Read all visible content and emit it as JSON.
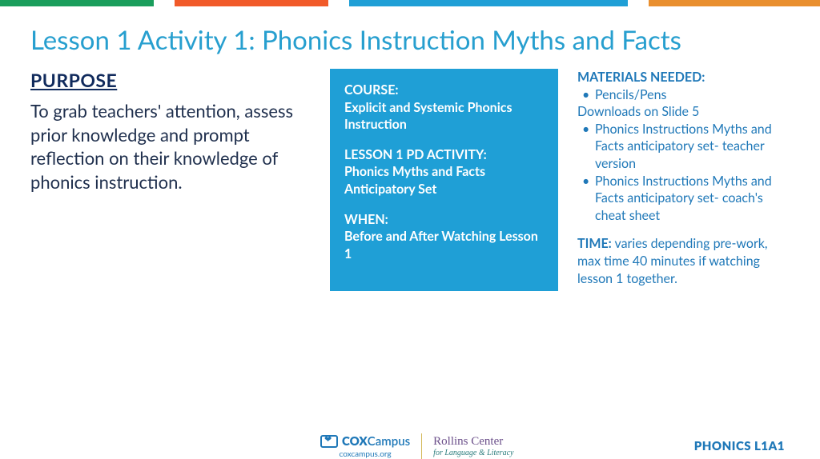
{
  "colors": {
    "top_bar": [
      "#1a9e5c",
      "#ffffff",
      "#f15a29",
      "#ffffff",
      "#1f9fd6",
      "#ffffff",
      "#e98f2f"
    ],
    "top_bar_widths": [
      192,
      26,
      192,
      26,
      348,
      26,
      214
    ],
    "title": "#279fcf",
    "purpose_heading": "#102a5c",
    "purpose_text": "#1f2f4d",
    "bluebox_bg": "#1f9fd6",
    "bluebox_text": "#ffffff",
    "materials_text": "#1f78b8",
    "footer_cox": "#1f78b8",
    "footer_divider": "#d4b95a",
    "footer_rollins_main": "#6b4f8a",
    "footer_rollins_sub": "#2a7c7c",
    "footer_code": "#1f78b8"
  },
  "title": "Lesson 1 Activity 1: Phonics Instruction Myths and Facts",
  "purpose": {
    "heading": "PURPOSE",
    "text": "To grab teachers' attention, assess prior knowledge and prompt reflection on their knowledge of phonics instruction."
  },
  "bluebox": {
    "course_label": "COURSE:",
    "course_value": "Explicit and Systemic Phonics Instruction",
    "lesson_label": "LESSON 1 PD ACTIVITY:",
    "lesson_value": "Phonics Myths and Facts Anticipatory Set",
    "when_label": "WHEN:",
    "when_value": "Before and After Watching Lesson 1"
  },
  "materials": {
    "heading": "MATERIALS NEEDED:",
    "item1": "Pencils/Pens",
    "note": "Downloads on Slide 5",
    "item2": "Phonics Instructions Myths and Facts anticipatory set- teacher version",
    "item3": "Phonics Instructions Myths and Facts anticipatory set- coach's cheat sheet",
    "time_label": "TIME:",
    "time_value": " varies depending pre-work, max time 40 minutes if watching lesson 1 together."
  },
  "footer": {
    "cox_bold": "COX",
    "cox_light": "Campus",
    "cox_url": "coxcampus.org",
    "rollins_main": "Rollins Center",
    "rollins_sub": "for Language & Literacy",
    "code": "PHONICS L1A1"
  }
}
